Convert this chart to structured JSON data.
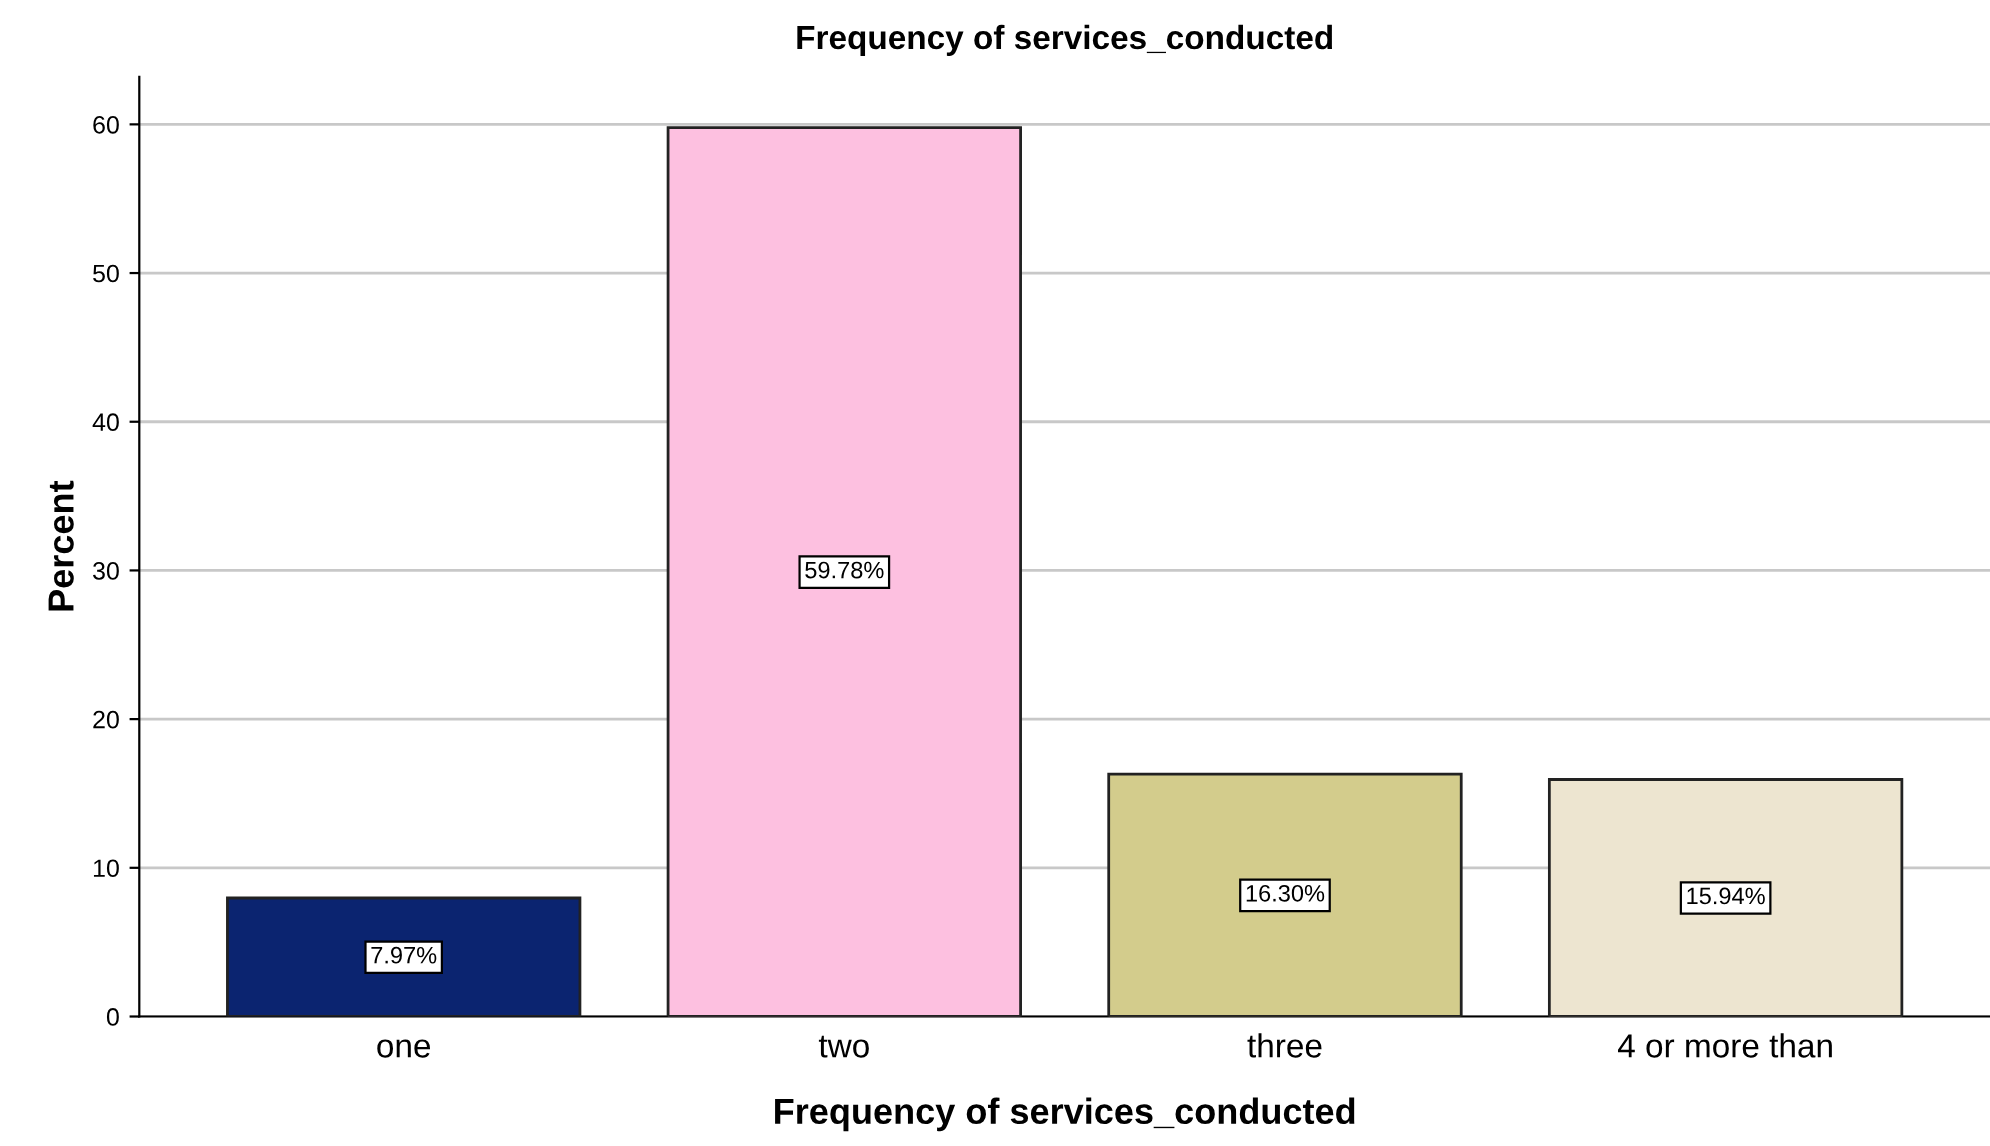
{
  "chart_data": {
    "type": "bar",
    "title": "Frequency of services_conducted",
    "xlabel": "Frequency of services_conducted",
    "ylabel": "Percent",
    "categories": [
      "one",
      "two",
      "three",
      "4 or more than"
    ],
    "values": [
      7.97,
      59.78,
      16.3,
      15.94
    ],
    "colors": [
      "#0b2470",
      "#fdc0e0",
      "#d3cc8c",
      "#ede5d0"
    ],
    "value_labels": [
      "7.97%",
      "59.78%",
      "16.30%",
      "15.94%"
    ],
    "ylim": [
      0,
      63.2
    ],
    "yticks": [
      0,
      10,
      20,
      30,
      40,
      50,
      60
    ],
    "grid": "y"
  }
}
